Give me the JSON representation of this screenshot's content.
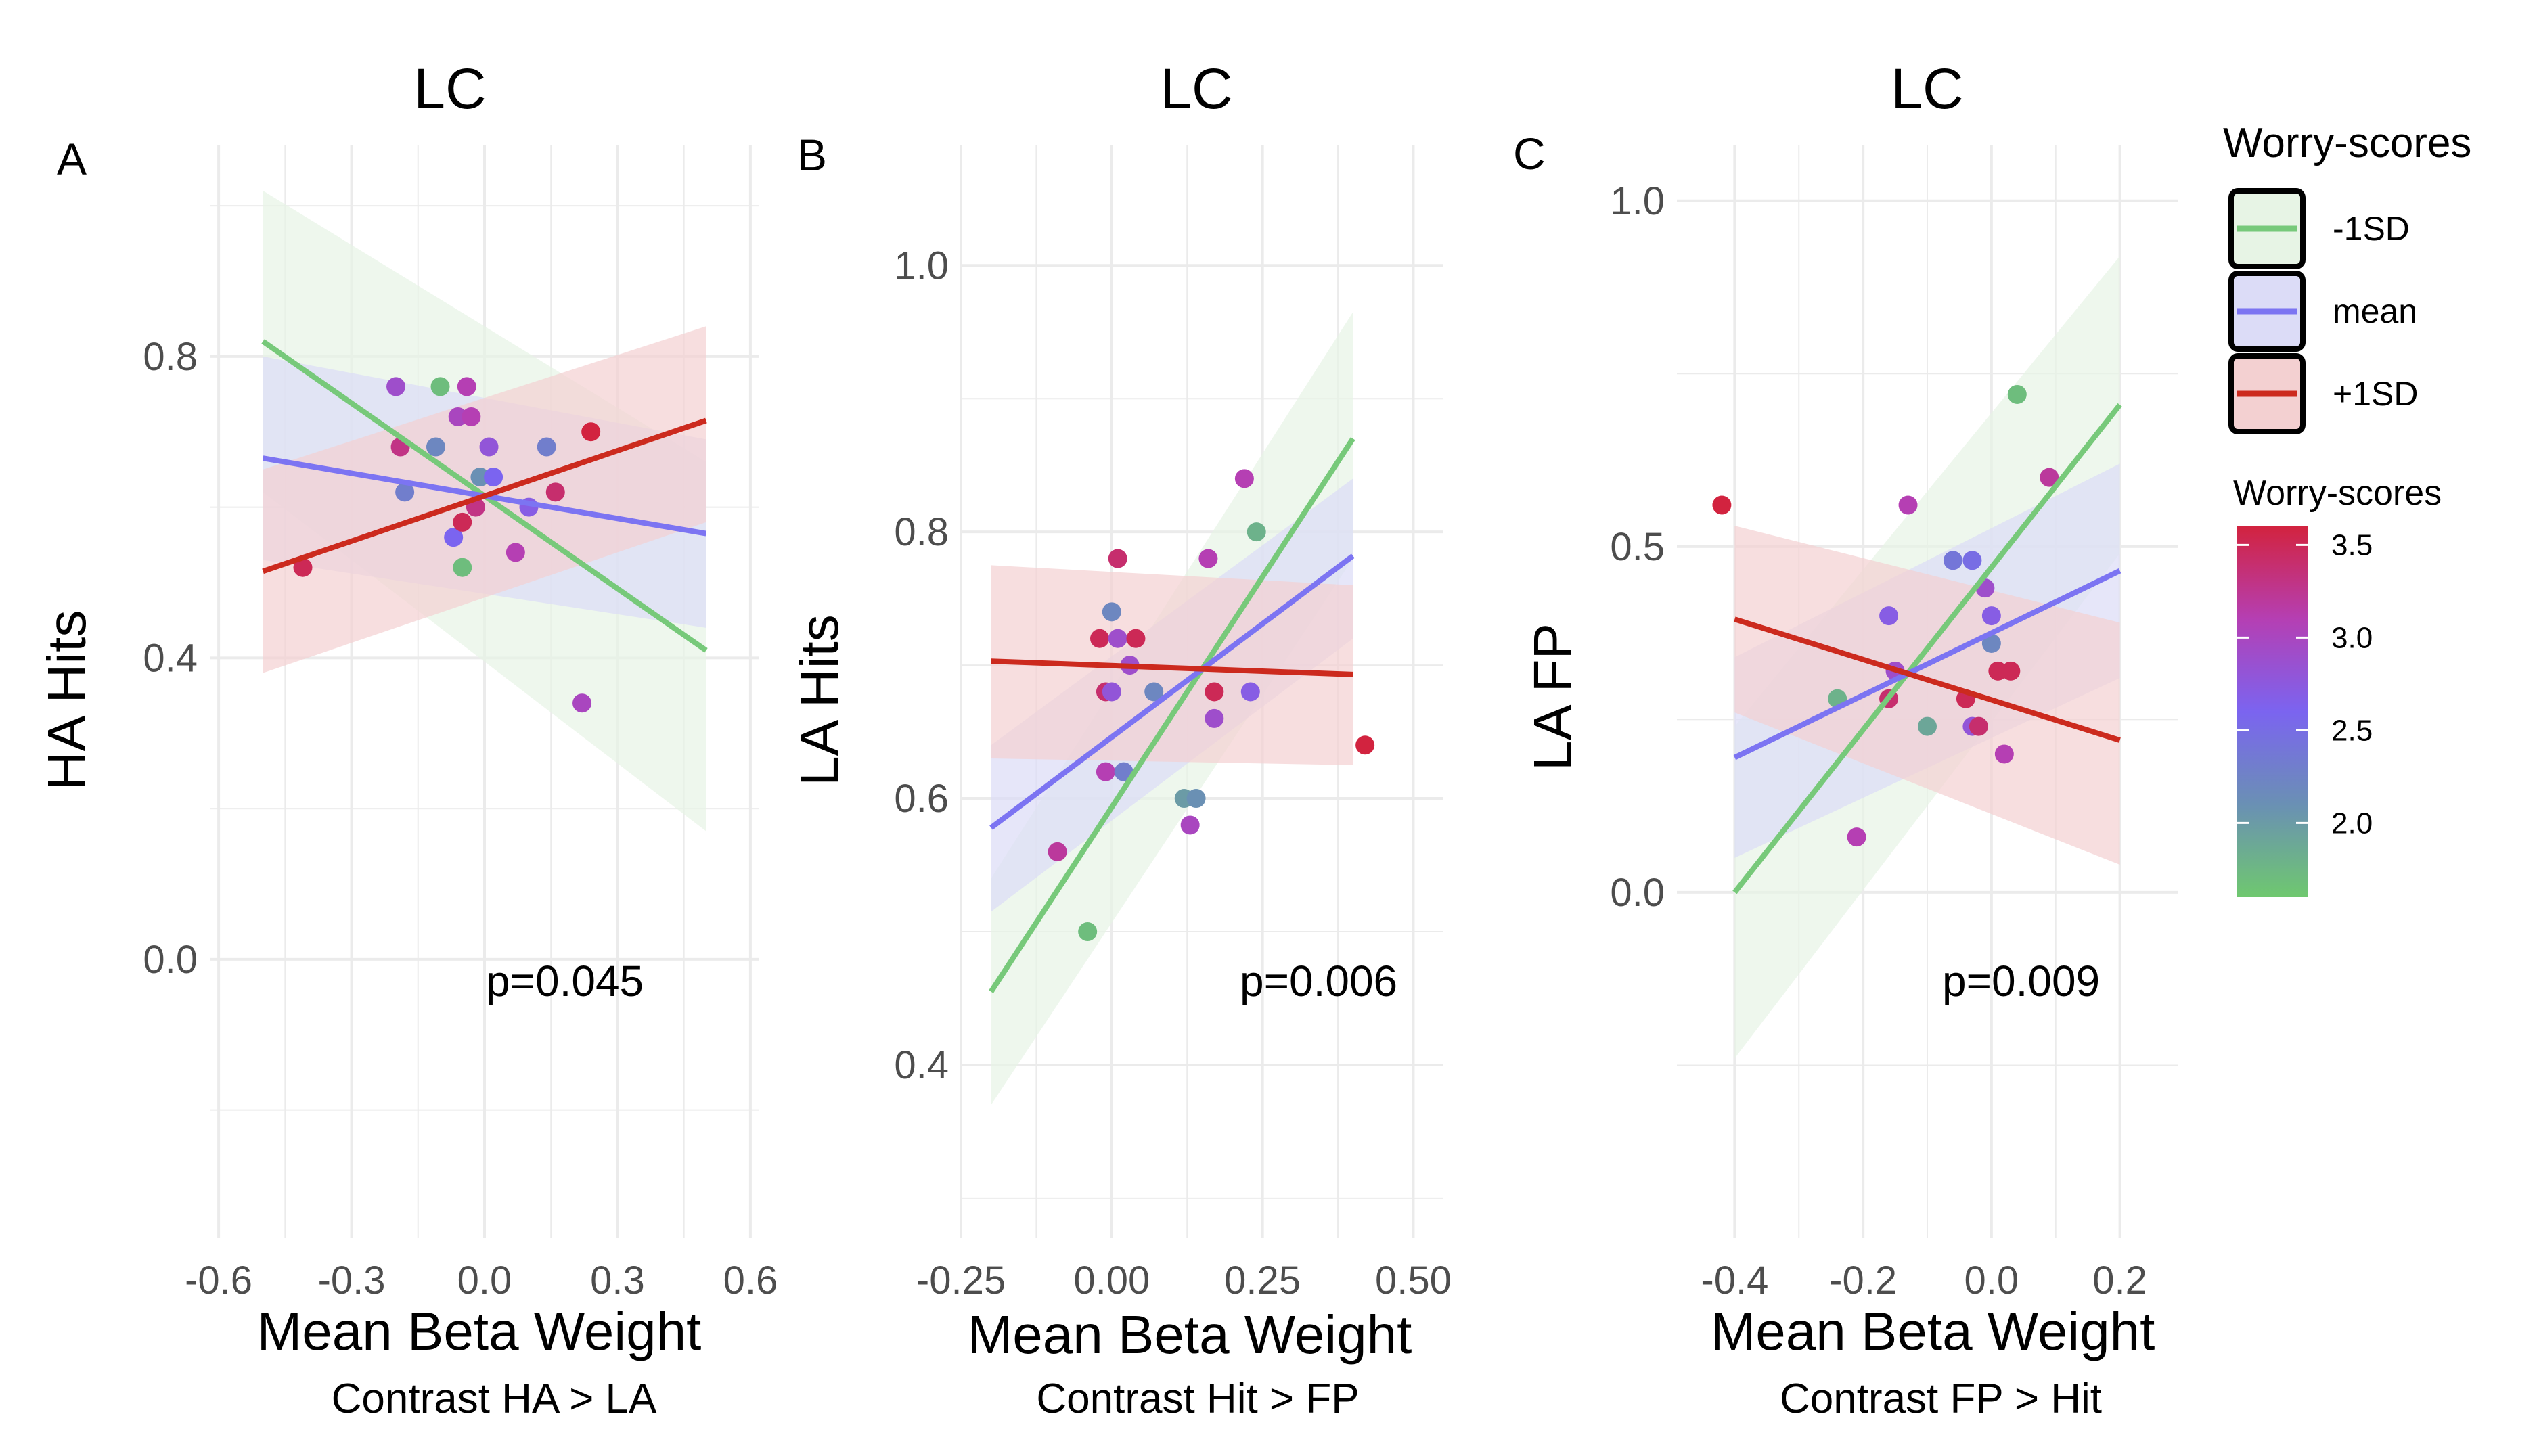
{
  "figure": {
    "colors": {
      "low": "#77c97a",
      "mean": "#7c74f2",
      "high": "#cc2a1e",
      "ribbon_low": "#e7f4e5",
      "ribbon_mean": "#dcdcf7",
      "ribbon_high": "#f3d0d1",
      "grid": "#ebebeb",
      "tick_text": "#4d4d4d"
    }
  },
  "legend": {
    "title": "Worry-scores",
    "entries": [
      {
        "key": "low",
        "label": "-1SD"
      },
      {
        "key": "mean",
        "label": "mean"
      },
      {
        "key": "high",
        "label": "+1SD"
      }
    ],
    "colorbar_title": "Worry-scores",
    "colorbar_ticks": [
      "3.5",
      "3.0",
      "2.5",
      "2.0"
    ],
    "colorbar_tick_values": [
      3.5,
      3.0,
      2.5,
      2.0
    ],
    "colorbar_range": [
      1.6,
      3.6
    ],
    "colorbar_stops": [
      "#6fc86f",
      "#6a90b4",
      "#7b64f0",
      "#b53fb3",
      "#d2233f"
    ]
  },
  "chart_data": [
    {
      "type": "scatter",
      "panel_letter": "A",
      "title": "LC",
      "xlabel": "Mean Beta Weight",
      "xsublabel": "Contrast HA > LA",
      "ylabel": "HA Hits",
      "annotation": "p=0.045",
      "xlim": [
        -0.62,
        0.62
      ],
      "ylim": [
        -0.37,
        1.08
      ],
      "xticks": [
        -0.6,
        -0.3,
        0.0,
        0.3,
        0.6
      ],
      "xtick_labels": [
        "-0.6",
        "-0.3",
        "0.0",
        "0.3",
        "0.6"
      ],
      "yticks": [
        0.0,
        0.4,
        0.8
      ],
      "ytick_labels": [
        "0.0",
        "0.4",
        "0.8"
      ],
      "xminor": [
        -0.45,
        -0.15,
        0.15,
        0.45
      ],
      "yminor": [
        -0.2,
        0.2,
        0.6,
        1.0
      ],
      "points": [
        {
          "x": -0.41,
          "y": 0.52,
          "w": 3.5
        },
        {
          "x": -0.2,
          "y": 0.76,
          "w": 2.9
        },
        {
          "x": -0.19,
          "y": 0.68,
          "w": 3.3
        },
        {
          "x": -0.18,
          "y": 0.62,
          "w": 2.3
        },
        {
          "x": -0.11,
          "y": 0.68,
          "w": 2.2
        },
        {
          "x": -0.1,
          "y": 0.76,
          "w": 1.7
        },
        {
          "x": -0.07,
          "y": 0.56,
          "w": 2.6
        },
        {
          "x": -0.06,
          "y": 0.72,
          "w": 3.0
        },
        {
          "x": -0.05,
          "y": 0.58,
          "w": 3.5
        },
        {
          "x": -0.05,
          "y": 0.52,
          "w": 1.7
        },
        {
          "x": -0.04,
          "y": 0.76,
          "w": 3.1
        },
        {
          "x": -0.03,
          "y": 0.72,
          "w": 3.1
        },
        {
          "x": -0.02,
          "y": 0.6,
          "w": 3.3
        },
        {
          "x": -0.01,
          "y": 0.64,
          "w": 2.1
        },
        {
          "x": 0.01,
          "y": 0.68,
          "w": 2.8
        },
        {
          "x": 0.02,
          "y": 0.64,
          "w": 2.6
        },
        {
          "x": 0.07,
          "y": 0.54,
          "w": 3.1
        },
        {
          "x": 0.1,
          "y": 0.6,
          "w": 2.7
        },
        {
          "x": 0.14,
          "y": 0.68,
          "w": 2.3
        },
        {
          "x": 0.16,
          "y": 0.62,
          "w": 3.4
        },
        {
          "x": 0.22,
          "y": 0.34,
          "w": 3.0
        },
        {
          "x": 0.24,
          "y": 0.7,
          "w": 3.6
        }
      ],
      "lines": [
        {
          "key": "low",
          "x": [
            -0.5,
            0.5
          ],
          "y": [
            0.82,
            0.41
          ],
          "ci_lo": [
            0.62,
            0.17
          ],
          "ci_hi": [
            1.02,
            0.66
          ]
        },
        {
          "key": "mean",
          "x": [
            -0.5,
            0.5
          ],
          "y": [
            0.665,
            0.565
          ],
          "ci_lo": [
            0.53,
            0.44
          ],
          "ci_hi": [
            0.8,
            0.69
          ]
        },
        {
          "key": "high",
          "x": [
            -0.5,
            0.5
          ],
          "y": [
            0.515,
            0.715
          ],
          "ci_lo": [
            0.38,
            0.58
          ],
          "ci_hi": [
            0.65,
            0.84
          ]
        }
      ]
    },
    {
      "type": "scatter",
      "panel_letter": "B",
      "title": "LC",
      "xlabel": "Mean Beta Weight",
      "xsublabel": "Contrast  Hit > FP",
      "ylabel": "LA Hits",
      "annotation": "p=0.006",
      "xlim": [
        -0.25,
        0.55
      ],
      "ylim": [
        0.27,
        1.09
      ],
      "xticks": [
        -0.25,
        0.0,
        0.25,
        0.5
      ],
      "xtick_labels": [
        "-0.25",
        "0.00",
        "0.25",
        "0.50"
      ],
      "yticks": [
        0.4,
        0.6,
        0.8,
        1.0
      ],
      "ytick_labels": [
        "0.4",
        "0.6",
        "0.8",
        "1.0"
      ],
      "xminor": [
        -0.125,
        0.125,
        0.375
      ],
      "yminor": [
        0.3,
        0.5,
        0.7,
        0.9
      ],
      "points": [
        {
          "x": -0.09,
          "y": 0.56,
          "w": 3.2
        },
        {
          "x": -0.04,
          "y": 0.5,
          "w": 1.7
        },
        {
          "x": -0.02,
          "y": 0.72,
          "w": 3.5
        },
        {
          "x": -0.01,
          "y": 0.62,
          "w": 3.1
        },
        {
          "x": -0.01,
          "y": 0.68,
          "w": 3.4
        },
        {
          "x": 0.0,
          "y": 0.74,
          "w": 2.2
        },
        {
          "x": 0.0,
          "y": 0.68,
          "w": 2.8
        },
        {
          "x": 0.01,
          "y": 0.72,
          "w": 2.9
        },
        {
          "x": 0.01,
          "y": 0.78,
          "w": 3.4
        },
        {
          "x": 0.02,
          "y": 0.62,
          "w": 2.3
        },
        {
          "x": 0.03,
          "y": 0.7,
          "w": 2.9
        },
        {
          "x": 0.04,
          "y": 0.72,
          "w": 3.5
        },
        {
          "x": 0.07,
          "y": 0.68,
          "w": 2.2
        },
        {
          "x": 0.12,
          "y": 0.6,
          "w": 2.0
        },
        {
          "x": 0.13,
          "y": 0.58,
          "w": 3.0
        },
        {
          "x": 0.14,
          "y": 0.6,
          "w": 2.1
        },
        {
          "x": 0.16,
          "y": 0.78,
          "w": 3.1
        },
        {
          "x": 0.17,
          "y": 0.68,
          "w": 3.5
        },
        {
          "x": 0.17,
          "y": 0.66,
          "w": 2.9
        },
        {
          "x": 0.22,
          "y": 0.84,
          "w": 3.1
        },
        {
          "x": 0.23,
          "y": 0.68,
          "w": 2.7
        },
        {
          "x": 0.24,
          "y": 0.8,
          "w": 1.8
        },
        {
          "x": 0.42,
          "y": 0.64,
          "w": 3.6
        }
      ],
      "lines": [
        {
          "key": "low",
          "x": [
            -0.2,
            0.4
          ],
          "y": [
            0.455,
            0.87
          ],
          "ci_lo": [
            0.37,
            0.78
          ],
          "ci_hi": [
            0.54,
            0.965
          ]
        },
        {
          "key": "mean",
          "x": [
            -0.2,
            0.4
          ],
          "y": [
            0.578,
            0.782
          ],
          "ci_lo": [
            0.515,
            0.72
          ],
          "ci_hi": [
            0.64,
            0.84
          ]
        },
        {
          "key": "high",
          "x": [
            -0.2,
            0.4
          ],
          "y": [
            0.703,
            0.693
          ],
          "ci_lo": [
            0.63,
            0.625
          ],
          "ci_hi": [
            0.775,
            0.76
          ]
        }
      ]
    },
    {
      "type": "scatter",
      "panel_letter": "C",
      "title": "LC",
      "xlabel": "Mean Beta Weight",
      "xsublabel": "Contrast FP > Hit",
      "ylabel": "LA FP",
      "annotation": "p=0.009",
      "xlim": [
        -0.49,
        0.29
      ],
      "ylim": [
        -0.5,
        1.08
      ],
      "xticks": [
        -0.4,
        -0.2,
        0.0,
        0.2
      ],
      "xtick_labels": [
        "-0.4",
        "-0.2",
        "0.0",
        "0.2"
      ],
      "yticks": [
        0.0,
        0.5,
        1.0
      ],
      "ytick_labels": [
        "0.0",
        "0.5",
        "1.0"
      ],
      "xminor": [
        -0.3,
        -0.1,
        0.1
      ],
      "yminor": [
        -0.25,
        0.25,
        0.75
      ],
      "points": [
        {
          "x": -0.42,
          "y": 0.56,
          "w": 3.6
        },
        {
          "x": -0.24,
          "y": 0.28,
          "w": 1.8
        },
        {
          "x": -0.21,
          "y": 0.08,
          "w": 3.1
        },
        {
          "x": -0.16,
          "y": 0.4,
          "w": 2.7
        },
        {
          "x": -0.16,
          "y": 0.28,
          "w": 3.4
        },
        {
          "x": -0.15,
          "y": 0.32,
          "w": 2.9
        },
        {
          "x": -0.13,
          "y": 0.56,
          "w": 3.1
        },
        {
          "x": -0.1,
          "y": 0.24,
          "w": 1.9
        },
        {
          "x": -0.06,
          "y": 0.48,
          "w": 2.4
        },
        {
          "x": -0.04,
          "y": 0.28,
          "w": 3.5
        },
        {
          "x": -0.03,
          "y": 0.48,
          "w": 2.5
        },
        {
          "x": -0.03,
          "y": 0.24,
          "w": 2.8
        },
        {
          "x": -0.02,
          "y": 0.24,
          "w": 3.4
        },
        {
          "x": -0.01,
          "y": 0.44,
          "w": 2.9
        },
        {
          "x": 0.0,
          "y": 0.4,
          "w": 2.7
        },
        {
          "x": 0.0,
          "y": 0.36,
          "w": 2.2
        },
        {
          "x": 0.01,
          "y": 0.32,
          "w": 3.5
        },
        {
          "x": 0.02,
          "y": 0.2,
          "w": 3.1
        },
        {
          "x": 0.03,
          "y": 0.32,
          "w": 3.5
        },
        {
          "x": 0.04,
          "y": 0.72,
          "w": 1.7
        },
        {
          "x": 0.09,
          "y": 0.6,
          "w": 3.2
        }
      ],
      "lines": [
        {
          "key": "low",
          "x": [
            -0.4,
            0.2
          ],
          "y": [
            0.0,
            0.705
          ],
          "ci_lo": [
            -0.24,
            0.49
          ],
          "ci_hi": [
            0.24,
            0.92
          ]
        },
        {
          "key": "mean",
          "x": [
            -0.4,
            0.2
          ],
          "y": [
            0.195,
            0.465
          ],
          "ci_lo": [
            0.05,
            0.31
          ],
          "ci_hi": [
            0.34,
            0.62
          ]
        },
        {
          "key": "high",
          "x": [
            -0.4,
            0.2
          ],
          "y": [
            0.395,
            0.22
          ],
          "ci_lo": [
            0.26,
            0.04
          ],
          "ci_hi": [
            0.53,
            0.39
          ]
        }
      ]
    }
  ]
}
